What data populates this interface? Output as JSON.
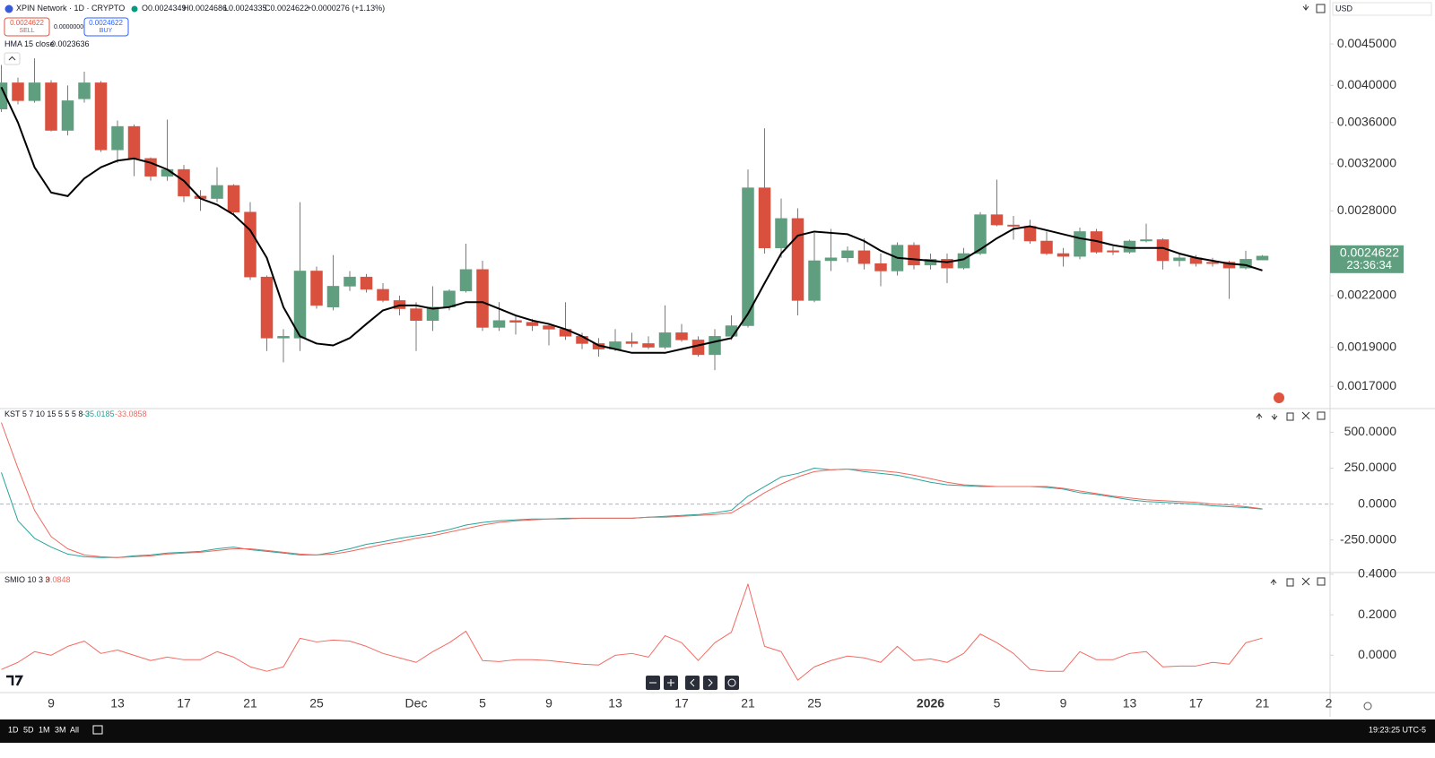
{
  "chart_data": [
    {
      "type": "candlestick",
      "title": "XPIN Network · 1D · CRYPTO",
      "ohlc_labels": [
        "O",
        "H",
        "L",
        "C"
      ],
      "change": "+0.0000276 (+1.13%)",
      "sell_label": "SELL",
      "buy_label": "BUY",
      "spread": "0.0000000",
      "currency": "USD",
      "countdown": "23:36:34",
      "up_color": "#5f9e7e",
      "down_color": "#d9503f",
      "wick_color": "#7a7a7a",
      "log_scale": true,
      "ylim": [
        0.0016,
        0.0051
      ],
      "yticks": [
        {
          "value": 0.0045,
          "label": "0.0045000"
        },
        {
          "value": 0.004,
          "label": "0.0040000"
        },
        {
          "value": 0.0036,
          "label": "0.0036000"
        },
        {
          "value": 0.0032,
          "label": "0.0032000"
        },
        {
          "value": 0.0028,
          "label": "0.0028000"
        },
        {
          "value": 0.0022,
          "label": "0.0022000"
        },
        {
          "value": 0.0019,
          "label": "0.0019000"
        },
        {
          "value": 0.0017,
          "label": "0.0017000"
        }
      ],
      "categories": [
        null,
        null,
        null,
        "9",
        null,
        null,
        null,
        "13",
        null,
        null,
        null,
        "17",
        null,
        null,
        null,
        "21",
        null,
        null,
        null,
        "25",
        null,
        null,
        null,
        null,
        null,
        "Dec",
        null,
        null,
        null,
        "5",
        null,
        null,
        null,
        "9",
        null,
        null,
        null,
        "13",
        null,
        null,
        null,
        "17",
        null,
        null,
        null,
        "21",
        null,
        null,
        null,
        "25",
        null,
        null,
        null,
        null,
        null,
        null,
        "2026",
        null,
        null,
        null,
        "5",
        null,
        null,
        null,
        "9",
        null,
        null,
        null,
        "13",
        null,
        null,
        null,
        "17",
        null,
        null,
        null,
        "21",
        null,
        null,
        null,
        "2"
      ],
      "open": [
        0.00374,
        0.00403,
        0.00383,
        0.00403,
        0.00352,
        0.00385,
        0.00403,
        0.00333,
        0.00356,
        0.00325,
        0.00309,
        0.00315,
        0.00292,
        0.0029,
        0.00301,
        0.00279,
        0.00232,
        0.00195,
        0.00195,
        0.00236,
        0.00213,
        0.00226,
        0.00232,
        0.00224,
        0.00217,
        0.00212,
        0.00205,
        0.00213,
        0.00223,
        0.00237,
        0.00201,
        0.00205,
        0.00204,
        0.00202,
        0.002,
        0.00196,
        0.00192,
        0.00189,
        0.00193,
        0.00192,
        0.0019,
        0.00198,
        0.00194,
        0.00186,
        0.00196,
        0.00202,
        0.00299,
        0.00252,
        0.00274,
        0.00217,
        0.00243,
        0.00245,
        0.0025,
        0.00241,
        0.00236,
        0.00254,
        0.0024,
        0.00244,
        0.00238,
        0.00248,
        0.00277,
        0.00269,
        0.00268,
        0.00257,
        0.00248,
        0.00246,
        0.00264,
        0.0025,
        0.00249,
        0.00257,
        0.00258,
        0.00243,
        0.00245,
        0.00242,
        0.00242,
        0.00238,
        0.0024349,
        null,
        null,
        null,
        null
      ],
      "high": [
        0.00424,
        0.00409,
        0.00432,
        0.00406,
        0.004,
        0.00416,
        0.00405,
        0.00362,
        0.00358,
        0.00326,
        0.00363,
        0.00319,
        0.00297,
        0.00317,
        0.00302,
        0.00287,
        0.00233,
        0.002,
        0.00287,
        0.00239,
        0.00247,
        0.00236,
        0.00234,
        0.00228,
        0.0022,
        0.00216,
        0.00226,
        0.00224,
        0.00255,
        0.00243,
        0.00216,
        0.00208,
        0.00206,
        0.00203,
        0.00216,
        0.00198,
        0.00195,
        0.002,
        0.00198,
        0.00196,
        0.00214,
        0.00203,
        0.00196,
        0.002,
        0.00208,
        0.00315,
        0.00354,
        0.0029,
        0.00282,
        0.00263,
        0.00266,
        0.00253,
        0.00259,
        0.00248,
        0.00256,
        0.00256,
        0.00248,
        0.00248,
        0.00252,
        0.00279,
        0.00306,
        0.00276,
        0.00273,
        0.00264,
        0.00252,
        0.00267,
        0.00266,
        0.00253,
        0.00258,
        0.0027,
        0.00259,
        0.00248,
        0.00247,
        0.00245,
        0.00243,
        0.0025,
        0.0024686,
        null,
        null,
        null,
        null
      ],
      "low": [
        0.00371,
        0.00379,
        0.00381,
        0.00351,
        0.00347,
        0.00381,
        0.00331,
        0.00321,
        0.00309,
        0.00305,
        0.00305,
        0.00287,
        0.0028,
        0.00287,
        0.00277,
        0.0023,
        0.00188,
        0.00182,
        0.00188,
        0.00212,
        0.00211,
        0.00223,
        0.00222,
        0.00216,
        0.00208,
        0.00188,
        0.00199,
        0.00211,
        0.00222,
        0.00199,
        0.00199,
        0.00197,
        0.00199,
        0.00191,
        0.00194,
        0.00189,
        0.00185,
        0.00188,
        0.0019,
        0.00189,
        0.00189,
        0.00193,
        0.00185,
        0.00178,
        0.00194,
        0.00201,
        0.00248,
        0.00245,
        0.00208,
        0.00216,
        0.00236,
        0.00242,
        0.00237,
        0.00226,
        0.00233,
        0.00237,
        0.00237,
        0.00228,
        0.00237,
        0.00247,
        0.00268,
        0.00258,
        0.00255,
        0.00247,
        0.00239,
        0.00244,
        0.00248,
        0.00247,
        0.00248,
        0.00256,
        0.00237,
        0.00239,
        0.00239,
        0.00239,
        0.00218,
        0.00237,
        0.0024335,
        null,
        null,
        null,
        null
      ],
      "close": [
        0.00403,
        0.00383,
        0.00403,
        0.00352,
        0.00383,
        0.00403,
        0.00333,
        0.00356,
        0.00325,
        0.00309,
        0.00315,
        0.00292,
        0.0029,
        0.00301,
        0.00279,
        0.00232,
        0.00195,
        0.00196,
        0.00236,
        0.00214,
        0.00226,
        0.00232,
        0.00224,
        0.00217,
        0.00212,
        0.00205,
        0.00213,
        0.00223,
        0.00237,
        0.00201,
        0.00205,
        0.00204,
        0.00202,
        0.002,
        0.00196,
        0.00192,
        0.00189,
        0.00193,
        0.00192,
        0.0019,
        0.00198,
        0.00194,
        0.00186,
        0.00196,
        0.00202,
        0.00299,
        0.00252,
        0.00274,
        0.00217,
        0.00243,
        0.00245,
        0.0025,
        0.00241,
        0.00236,
        0.00254,
        0.0024,
        0.00244,
        0.00238,
        0.00248,
        0.00277,
        0.00269,
        0.00268,
        0.00257,
        0.00248,
        0.00246,
        0.00264,
        0.00249,
        0.00249,
        0.00257,
        0.00258,
        0.00243,
        0.00245,
        0.00241,
        0.00241,
        0.00238,
        0.00244,
        0.0024622,
        null,
        null,
        null,
        null
      ],
      "overlays": [
        {
          "name": "HMA 15 close",
          "color": "#000000",
          "values": [
            0.00398,
            0.0036,
            0.00317,
            0.00295,
            0.00292,
            0.00307,
            0.00317,
            0.00323,
            0.00325,
            0.00321,
            0.00315,
            0.00305,
            0.0029,
            0.00285,
            0.00277,
            0.00265,
            0.00245,
            0.00213,
            0.00196,
            0.00192,
            0.00191,
            0.00195,
            0.00203,
            0.00211,
            0.00214,
            0.00214,
            0.00212,
            0.00213,
            0.00216,
            0.00216,
            0.00212,
            0.00208,
            0.00205,
            0.00203,
            0.002,
            0.00196,
            0.00191,
            0.00189,
            0.00187,
            0.00187,
            0.00187,
            0.00189,
            0.00191,
            0.00193,
            0.00195,
            0.00209,
            0.00228,
            0.00248,
            0.00261,
            0.00264,
            0.00263,
            0.00262,
            0.00257,
            0.0025,
            0.00245,
            0.00244,
            0.00243,
            0.00242,
            0.00244,
            0.00251,
            0.00259,
            0.00266,
            0.00268,
            0.00265,
            0.00262,
            0.00259,
            0.00257,
            0.00254,
            0.00252,
            0.00252,
            0.00252,
            0.00248,
            0.00245,
            0.00243,
            0.00241,
            0.0024,
            0.0023636,
            null,
            null,
            null,
            null
          ]
        }
      ]
    },
    {
      "type": "line",
      "title": "KST 5 7 10 15 5 5 5 8 3",
      "ylim": [
        -470,
        652
      ],
      "zero_line": true,
      "yticks": [
        {
          "value": 500,
          "label": "500.0000"
        },
        {
          "value": 250,
          "label": "250.0000"
        },
        {
          "value": 0,
          "label": "0.0000"
        },
        {
          "value": -250,
          "label": "-250.0000"
        }
      ],
      "series": [
        {
          "color": "#2aa39a",
          "values": [
            220,
            -116,
            -238,
            -299,
            -348,
            -366,
            -372,
            -372,
            -360,
            -354,
            -341,
            -335,
            -329,
            -311,
            -299,
            -317,
            -329,
            -341,
            -354,
            -354,
            -335,
            -311,
            -280,
            -262,
            -238,
            -220,
            -201,
            -177,
            -146,
            -128,
            -116,
            -110,
            -104,
            -104,
            -98,
            -98,
            -98,
            -98,
            -98,
            -91,
            -85,
            -79,
            -73,
            -61,
            -43,
            55,
            122,
            189,
            213,
            250,
            238,
            244,
            226,
            213,
            201,
            177,
            152,
            134,
            128,
            122,
            122,
            122,
            122,
            116,
            104,
            79,
            67,
            49,
            30,
            18,
            12,
            6,
            0,
            -12,
            -18,
            -24,
            -35.0185,
            null,
            null,
            null,
            null
          ]
        },
        {
          "color": "#f0685e",
          "values": [
            567,
            250,
            -43,
            -226,
            -311,
            -354,
            -366,
            -372,
            -366,
            -360,
            -348,
            -341,
            -335,
            -323,
            -311,
            -311,
            -323,
            -335,
            -348,
            -354,
            -348,
            -329,
            -305,
            -280,
            -262,
            -238,
            -220,
            -195,
            -171,
            -146,
            -128,
            -116,
            -110,
            -104,
            -104,
            -98,
            -98,
            -98,
            -98,
            -91,
            -91,
            -85,
            -79,
            -73,
            -61,
            6,
            79,
            140,
            189,
            226,
            238,
            244,
            238,
            232,
            220,
            201,
            177,
            152,
            134,
            128,
            122,
            122,
            122,
            122,
            110,
            91,
            73,
            55,
            43,
            30,
            24,
            18,
            12,
            0,
            -6,
            -18,
            -33.0858,
            null,
            null,
            null,
            null
          ]
        }
      ]
    },
    {
      "type": "line",
      "title": "SMIO 10 3 3",
      "ylim": [
        -0.18,
        0.4
      ],
      "yticks": [
        {
          "value": 0.4,
          "label": "0.4000"
        },
        {
          "value": 0.2,
          "label": "0.2000"
        },
        {
          "value": 0,
          "label": "0.0000"
        }
      ],
      "series": [
        {
          "color": "#f26b63",
          "values": [
            -0.07,
            -0.035,
            0.018,
            0,
            0.044,
            0.07,
            0.009,
            0.026,
            0,
            -0.026,
            -0.009,
            -0.022,
            -0.022,
            0.018,
            -0.009,
            -0.057,
            -0.079,
            -0.057,
            0.084,
            0.066,
            0.075,
            0.07,
            0.044,
            0.009,
            -0.013,
            -0.035,
            0.018,
            0.062,
            0.119,
            -0.026,
            -0.031,
            -0.022,
            -0.022,
            -0.026,
            -0.035,
            -0.044,
            -0.048,
            0,
            0.009,
            -0.009,
            0.097,
            0.062,
            -0.026,
            0.062,
            0.114,
            0.352,
            0.044,
            0.018,
            -0.123,
            -0.057,
            -0.026,
            -0.004,
            -0.013,
            -0.035,
            0.044,
            -0.026,
            -0.018,
            -0.035,
            0.009,
            0.105,
            0.062,
            0.009,
            -0.07,
            -0.079,
            -0.079,
            0.018,
            -0.022,
            -0.022,
            0.009,
            0.018,
            -0.057,
            -0.053,
            -0.053,
            -0.035,
            -0.044,
            0.062,
            0.0848,
            null,
            null,
            null,
            null
          ]
        }
      ]
    }
  ],
  "toolbar": {
    "ranges": [
      "1D",
      "5D",
      "1M",
      "3M",
      "All"
    ],
    "clock": "19:23:25 UTC-5"
  }
}
